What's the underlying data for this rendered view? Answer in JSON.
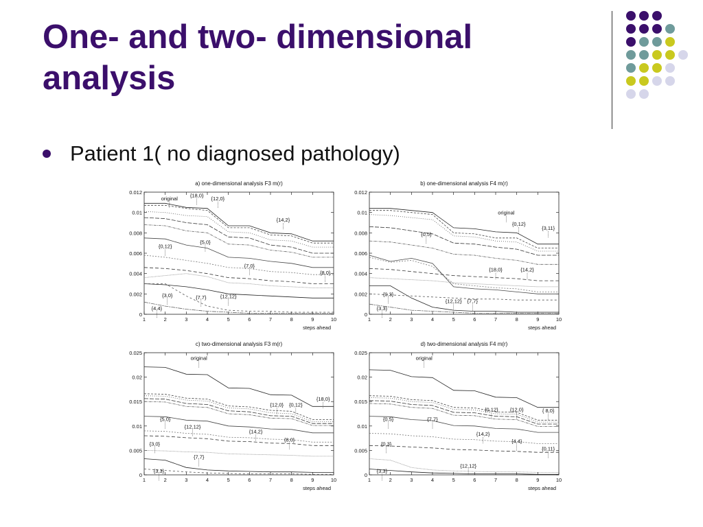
{
  "slide": {
    "title": "One- and two- dimensional analysis",
    "bullet": "Patient 1( no diagnosed pathology)"
  },
  "decor": {
    "colors": {
      "purple": "#3b0f6b",
      "teal": "#6f9b9b",
      "olive": "#c9c91f",
      "lavender": "#d6d6ea"
    },
    "dot_rows": [
      [
        "purple",
        "purple",
        "purple"
      ],
      [
        "purple",
        "purple",
        "purple",
        "teal"
      ],
      [
        "purple",
        "teal",
        "teal",
        "olive"
      ],
      [
        "teal",
        "teal",
        "olive",
        "olive",
        "lavender"
      ],
      [
        "teal",
        "olive",
        "olive",
        "lavender"
      ],
      [
        "olive",
        "olive",
        "lavender",
        "lavender"
      ],
      [
        "lavender",
        "lavender"
      ]
    ]
  },
  "chart_data": [
    {
      "type": "line",
      "title": "a) one-dimensional analysis F3 m(r)",
      "xlabel": "steps ahead",
      "ylabel": "",
      "xlim": [
        1,
        10
      ],
      "ylim": [
        0,
        0.012
      ],
      "xticks": [
        1,
        2,
        3,
        4,
        5,
        6,
        7,
        8,
        9,
        10
      ],
      "yticks": [
        0,
        0.002,
        0.004,
        0.006,
        0.008,
        0.01,
        0.012
      ],
      "ytick_labels": [
        "0",
        "0.002",
        "0.004",
        "0.006",
        "0.008",
        "0.01",
        "0.012"
      ],
      "x": [
        1,
        2,
        3,
        4,
        5,
        6,
        7,
        8,
        9,
        10
      ],
      "series": [
        {
          "values": [
            0.0109,
            0.0109,
            0.0105,
            0.0104,
            0.0087,
            0.0087,
            0.008,
            0.0079,
            0.0072,
            0.0072
          ]
        },
        {
          "values": [
            0.0107,
            0.0107,
            0.0104,
            0.0102,
            0.0085,
            0.0085,
            0.0078,
            0.0077,
            0.007,
            0.007
          ]
        },
        {
          "values": [
            0.0101,
            0.01,
            0.0097,
            0.0096,
            0.0081,
            0.008,
            0.0073,
            0.0072,
            0.0066,
            0.0066
          ]
        },
        {
          "values": [
            0.0095,
            0.0094,
            0.009,
            0.0088,
            0.0076,
            0.0075,
            0.0068,
            0.0066,
            0.006,
            0.006
          ]
        },
        {
          "values": [
            0.0088,
            0.0087,
            0.0082,
            0.008,
            0.0069,
            0.0068,
            0.0063,
            0.0061,
            0.0056,
            0.0056
          ]
        },
        {
          "values": [
            0.0075,
            0.0074,
            0.0068,
            0.0065,
            0.0056,
            0.0055,
            0.0052,
            0.005,
            0.0046,
            0.0046
          ]
        },
        {
          "values": [
            0.0058,
            0.0056,
            0.0053,
            0.005,
            0.0046,
            0.0045,
            0.0042,
            0.0041,
            0.0039,
            0.0039
          ]
        },
        {
          "values": [
            0.0046,
            0.0045,
            0.0043,
            0.004,
            0.0036,
            0.0035,
            0.0033,
            0.0032,
            0.003,
            0.003
          ]
        },
        {
          "values": [
            0.0036,
            0.0038,
            0.004,
            0.0037,
            0.0031,
            0.003,
            0.0028,
            0.0027,
            0.0026,
            0.0026
          ]
        },
        {
          "values": [
            0.003,
            0.0029,
            0.0027,
            0.0024,
            0.002,
            0.0019,
            0.0018,
            0.0017,
            0.0016,
            0.0016
          ]
        },
        {
          "values": [
            0.003,
            0.003,
            0.0018,
            0.0008,
            0.0004,
            0.0003,
            0.0003,
            0.0002,
            0.0002,
            0.0002
          ]
        },
        {
          "values": [
            0.0012,
            0.0008,
            0.0005,
            0.0003,
            0.0002,
            0.0001,
            0.0001,
            0.0001,
            0.0001,
            0.0001
          ]
        }
      ],
      "annotations": [
        {
          "text": "original",
          "x": 2.2,
          "y": 0.0112
        },
        {
          "text": "{18,0}",
          "x": 3.5,
          "y": 0.0115
        },
        {
          "text": "{12,0}",
          "x": 4.5,
          "y": 0.0112
        },
        {
          "text": "{14,2}",
          "x": 7.6,
          "y": 0.0091
        },
        {
          "text": "{0,12}",
          "x": 2.0,
          "y": 0.0065
        },
        {
          "text": "{5,0}",
          "x": 3.9,
          "y": 0.0069
        },
        {
          "text": "{7,0}",
          "x": 6.0,
          "y": 0.0046
        },
        {
          "text": "{8,0}",
          "x": 9.6,
          "y": 0.0039
        },
        {
          "text": "{3,0}",
          "x": 2.1,
          "y": 0.0017
        },
        {
          "text": "{7,7}",
          "x": 3.7,
          "y": 0.0015
        },
        {
          "text": "{12,12}",
          "x": 5.0,
          "y": 0.0016
        },
        {
          "text": "{4,4}",
          "x": 1.6,
          "y": 0.0004
        }
      ]
    },
    {
      "type": "line",
      "title": "b) one-dimensional analysis F4 m(r)",
      "xlabel": "steps ahead",
      "ylabel": "",
      "xlim": [
        1,
        10
      ],
      "ylim": [
        0,
        0.012
      ],
      "xticks": [
        1,
        2,
        3,
        4,
        5,
        6,
        7,
        8,
        9,
        10
      ],
      "yticks": [
        0,
        0.002,
        0.004,
        0.006,
        0.008,
        0.01,
        0.012
      ],
      "ytick_labels": [
        "0",
        "0.002",
        "0.004",
        "0.006",
        "0.008",
        "0.01",
        "0.012"
      ],
      "x": [
        1,
        2,
        3,
        4,
        5,
        6,
        7,
        8,
        9,
        10
      ],
      "series": [
        {
          "values": [
            0.0104,
            0.0104,
            0.0102,
            0.01,
            0.0085,
            0.0084,
            0.0081,
            0.008,
            0.0069,
            0.0069
          ]
        },
        {
          "values": [
            0.0102,
            0.0102,
            0.01,
            0.0098,
            0.008,
            0.0079,
            0.0075,
            0.0075,
            0.0065,
            0.0065
          ]
        },
        {
          "values": [
            0.0098,
            0.0097,
            0.0095,
            0.0093,
            0.0077,
            0.0076,
            0.0072,
            0.0071,
            0.0062,
            0.0062
          ]
        },
        {
          "values": [
            0.0086,
            0.0085,
            0.0082,
            0.0079,
            0.007,
            0.0069,
            0.0066,
            0.0064,
            0.0058,
            0.0058
          ]
        },
        {
          "values": [
            0.0072,
            0.0071,
            0.0068,
            0.0065,
            0.0059,
            0.0058,
            0.0055,
            0.0053,
            0.0049,
            0.0049
          ]
        },
        {
          "values": [
            0.0058,
            0.0052,
            0.0055,
            0.005,
            0.0027,
            0.0025,
            0.0024,
            0.0022,
            0.002,
            0.002
          ]
        },
        {
          "values": [
            0.0056,
            0.0051,
            0.0053,
            0.0047,
            0.003,
            0.0028,
            0.0026,
            0.0025,
            0.0022,
            0.0022
          ]
        },
        {
          "values": [
            0.0045,
            0.0044,
            0.0042,
            0.004,
            0.0038,
            0.0037,
            0.0036,
            0.0035,
            0.0033,
            0.0033
          ]
        },
        {
          "values": [
            0.0036,
            0.0035,
            0.0034,
            0.0033,
            0.0031,
            0.003,
            0.0029,
            0.0028,
            0.0027,
            0.0027
          ]
        },
        {
          "values": [
            0.0028,
            0.0028,
            0.0016,
            0.0007,
            0.0004,
            0.0003,
            0.0003,
            0.0002,
            0.0002,
            0.0002
          ]
        },
        {
          "values": [
            0.002,
            0.0019,
            0.0018,
            0.0017,
            0.0016,
            0.0015,
            0.0015,
            0.0014,
            0.0014,
            0.0014
          ]
        },
        {
          "values": [
            0.001,
            0.0007,
            0.0004,
            0.0003,
            0.0002,
            0.0001,
            0.0001,
            0.0001,
            0.0001,
            0.0001
          ]
        }
      ],
      "annotations": [
        {
          "text": "original",
          "x": 7.5,
          "y": 0.0098
        },
        {
          "text": "{0,12}",
          "x": 8.1,
          "y": 0.0087
        },
        {
          "text": "{3,11}",
          "x": 9.5,
          "y": 0.0083
        },
        {
          "text": "{0,5}",
          "x": 3.7,
          "y": 0.0077
        },
        {
          "text": "{18,0}",
          "x": 7.0,
          "y": 0.0042
        },
        {
          "text": "{14,2}",
          "x": 8.5,
          "y": 0.0042
        },
        {
          "text": "{0,3}",
          "x": 1.9,
          "y": 0.0018
        },
        {
          "text": "{12,12}",
          "x": 5.0,
          "y": 0.0011
        },
        {
          "text": "{7,7}",
          "x": 5.9,
          "y": 0.0011
        },
        {
          "text": "{3,3}",
          "x": 1.6,
          "y": 0.0004
        }
      ]
    },
    {
      "type": "line",
      "title": "c) two-dimensional analysis F3 m(r)",
      "xlabel": "steps ahead",
      "ylabel": "",
      "xlim": [
        1,
        10
      ],
      "ylim": [
        0,
        0.025
      ],
      "xticks": [
        1,
        2,
        3,
        4,
        5,
        6,
        7,
        8,
        9,
        10
      ],
      "yticks": [
        0,
        0.005,
        0.01,
        0.015,
        0.02,
        0.025
      ],
      "ytick_labels": [
        "0",
        "0.005",
        "0.01",
        "0.015",
        "0.02",
        "0.025"
      ],
      "x": [
        1,
        2,
        3,
        4,
        5,
        6,
        7,
        8,
        9,
        10
      ],
      "series": [
        {
          "values": [
            0.0221,
            0.022,
            0.0206,
            0.0205,
            0.0178,
            0.0177,
            0.0164,
            0.0163,
            0.014,
            0.014
          ]
        },
        {
          "values": [
            0.0166,
            0.0165,
            0.0157,
            0.0155,
            0.0141,
            0.0139,
            0.0132,
            0.013,
            0.0113,
            0.0113
          ]
        },
        {
          "values": [
            0.0162,
            0.0161,
            0.0153,
            0.0151,
            0.0137,
            0.0135,
            0.0127,
            0.0125,
            0.0109,
            0.0109
          ]
        },
        {
          "values": [
            0.0156,
            0.0155,
            0.0146,
            0.0144,
            0.0131,
            0.0129,
            0.0121,
            0.012,
            0.0105,
            0.0105
          ]
        },
        {
          "values": [
            0.015,
            0.0149,
            0.014,
            0.0138,
            0.0125,
            0.0123,
            0.0116,
            0.0115,
            0.0101,
            0.0101
          ]
        },
        {
          "values": [
            0.012,
            0.0119,
            0.0112,
            0.011,
            0.01,
            0.0098,
            0.0094,
            0.0093,
            0.0086,
            0.0086
          ]
        },
        {
          "values": [
            0.009,
            0.0089,
            0.0085,
            0.0083,
            0.0077,
            0.0076,
            0.0073,
            0.0072,
            0.0067,
            0.0067
          ]
        },
        {
          "values": [
            0.008,
            0.0079,
            0.0076,
            0.0074,
            0.0069,
            0.0068,
            0.0065,
            0.0064,
            0.006,
            0.006
          ]
        },
        {
          "values": [
            0.005,
            0.0049,
            0.0047,
            0.0046,
            0.0043,
            0.0042,
            0.0041,
            0.004,
            0.0038,
            0.0038
          ]
        },
        {
          "values": [
            0.0033,
            0.003,
            0.0015,
            0.001,
            0.0008,
            0.0007,
            0.0006,
            0.0006,
            0.0005,
            0.0005
          ]
        },
        {
          "values": [
            0.0012,
            0.0009,
            0.0006,
            0.0004,
            0.0003,
            0.0002,
            0.0002,
            0.0002,
            0.0001,
            0.0001
          ]
        }
      ],
      "annotations": [
        {
          "text": "original",
          "x": 3.6,
          "y": 0.0235
        },
        {
          "text": "{12,0}",
          "x": 7.3,
          "y": 0.014
        },
        {
          "text": "{0,12}",
          "x": 8.2,
          "y": 0.014
        },
        {
          "text": "{18,0}",
          "x": 9.5,
          "y": 0.0152
        },
        {
          "text": "{5,0}",
          "x": 2.0,
          "y": 0.011
        },
        {
          "text": "{12,12}",
          "x": 3.3,
          "y": 0.0095
        },
        {
          "text": "{14,2}",
          "x": 6.3,
          "y": 0.0085
        },
        {
          "text": "{8,0}",
          "x": 7.9,
          "y": 0.0068
        },
        {
          "text": "{3,0}",
          "x": 1.5,
          "y": 0.006
        },
        {
          "text": "{7,7}",
          "x": 3.6,
          "y": 0.0033
        },
        {
          "text": "{3,3}",
          "x": 1.7,
          "y": 0.0004
        }
      ]
    },
    {
      "type": "line",
      "title": "d) two-dimensional analysis F4 m(r)",
      "xlabel": "steps ahead",
      "ylabel": "",
      "xlim": [
        1,
        10
      ],
      "ylim": [
        0,
        0.025
      ],
      "xticks": [
        1,
        2,
        3,
        4,
        5,
        6,
        7,
        8,
        9,
        10
      ],
      "yticks": [
        0,
        0.005,
        0.01,
        0.015,
        0.02,
        0.025
      ],
      "ytick_labels": [
        "0",
        "0.005",
        "0.01",
        "0.015",
        "0.02",
        "0.025"
      ],
      "x": [
        1,
        2,
        3,
        4,
        5,
        6,
        7,
        8,
        9,
        10
      ],
      "series": [
        {
          "values": [
            0.0215,
            0.0214,
            0.0201,
            0.0199,
            0.0173,
            0.0172,
            0.0159,
            0.0158,
            0.0138,
            0.0138
          ]
        },
        {
          "values": [
            0.0162,
            0.0161,
            0.0154,
            0.0152,
            0.0138,
            0.0137,
            0.0129,
            0.0128,
            0.0112,
            0.0112
          ]
        },
        {
          "values": [
            0.0158,
            0.0157,
            0.015,
            0.0148,
            0.0134,
            0.0133,
            0.0125,
            0.0124,
            0.0108,
            0.0108
          ]
        },
        {
          "values": [
            0.0152,
            0.0151,
            0.0144,
            0.0142,
            0.0128,
            0.0127,
            0.012,
            0.0119,
            0.0104,
            0.0104
          ]
        },
        {
          "values": [
            0.0146,
            0.0145,
            0.0138,
            0.0136,
            0.0122,
            0.0121,
            0.0114,
            0.0113,
            0.0099,
            0.0099
          ]
        },
        {
          "values": [
            0.012,
            0.0119,
            0.0113,
            0.0111,
            0.0101,
            0.01,
            0.0095,
            0.0094,
            0.0087,
            0.0087
          ]
        },
        {
          "values": [
            0.0085,
            0.0084,
            0.008,
            0.0078,
            0.0073,
            0.0072,
            0.0069,
            0.0068,
            0.0064,
            0.0064
          ]
        },
        {
          "values": [
            0.006,
            0.0059,
            0.0057,
            0.0055,
            0.0052,
            0.0051,
            0.0049,
            0.0048,
            0.0046,
            0.0046
          ]
        },
        {
          "values": [
            0.0033,
            0.003,
            0.0015,
            0.001,
            0.0008,
            0.0007,
            0.0006,
            0.0006,
            0.0005,
            0.0005
          ]
        },
        {
          "values": [
            0.0012,
            0.0009,
            0.0006,
            0.0004,
            0.0003,
            0.0002,
            0.0002,
            0.0002,
            0.0001,
            0.0001
          ]
        }
      ],
      "annotations": [
        {
          "text": "original",
          "x": 3.6,
          "y": 0.0235
        },
        {
          "text": "{0,12}",
          "x": 6.8,
          "y": 0.013
        },
        {
          "text": "{12,0}",
          "x": 8.0,
          "y": 0.013
        },
        {
          "text": "{ 8,0}",
          "x": 9.5,
          "y": 0.0128
        },
        {
          "text": "{0,5}",
          "x": 1.9,
          "y": 0.011
        },
        {
          "text": "{7,7}",
          "x": 4.0,
          "y": 0.011
        },
        {
          "text": "{14,2}",
          "x": 6.4,
          "y": 0.008
        },
        {
          "text": "{4,4}",
          "x": 8.0,
          "y": 0.0065
        },
        {
          "text": "{0,3}",
          "x": 1.8,
          "y": 0.006
        },
        {
          "text": "{0,11}",
          "x": 9.5,
          "y": 0.005
        },
        {
          "text": "{12,12}",
          "x": 5.7,
          "y": 0.0015
        },
        {
          "text": "{3,3}",
          "x": 1.6,
          "y": 0.0004
        }
      ]
    }
  ]
}
